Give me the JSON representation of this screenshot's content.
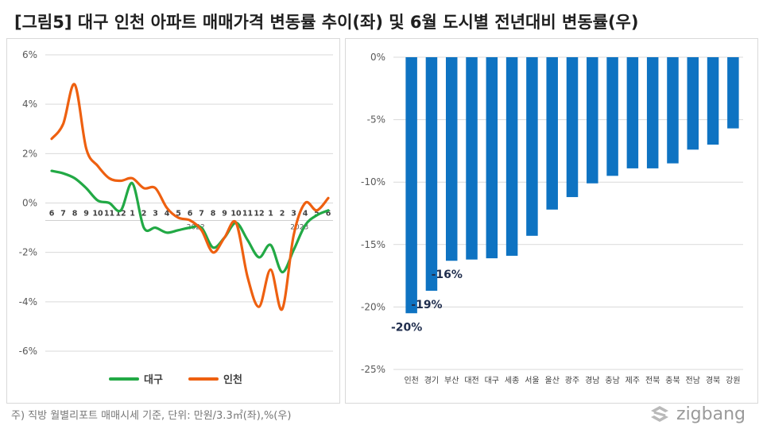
{
  "header": {
    "title": "[그림5] 대구 인천 아파트 매매가격 변동률 추이(좌) 및 6월 도시별 전년대비 변동률(우)"
  },
  "footnote": "주) 직방 월별리포트 매매시세 기준, 단위: 만원/3.3㎡(좌),%(우)",
  "brand": {
    "name": "zigbang",
    "icon": "zigbang-logo-icon"
  },
  "chart_data": [
    {
      "type": "line",
      "title": "",
      "x": [
        "6",
        "7",
        "8",
        "9",
        "10",
        "11",
        "12",
        "1",
        "2",
        "3",
        "4",
        "5",
        "6",
        "7",
        "8",
        "9",
        "10",
        "11",
        "12",
        "1",
        "2",
        "3",
        "4",
        "5",
        "6"
      ],
      "year_labels": [
        {
          "label": "2022",
          "index": 12.5
        },
        {
          "label": "2023",
          "index": 21.5
        }
      ],
      "y_ticks": [
        "6%",
        "4%",
        "2%",
        "0%",
        "-2%",
        "-4%",
        "-6%"
      ],
      "ylim": [
        -6,
        6
      ],
      "series": [
        {
          "name": "대구",
          "color": "#22a945",
          "values": [
            1.3,
            1.2,
            1.0,
            0.6,
            0.1,
            0.0,
            -0.3,
            0.8,
            -1.0,
            -1.0,
            -1.2,
            -1.1,
            -1.0,
            -1.0,
            -1.8,
            -1.4,
            -0.8,
            -1.5,
            -2.2,
            -1.7,
            -2.8,
            -1.9,
            -0.9,
            -0.5,
            -0.3
          ]
        },
        {
          "name": "인천",
          "color": "#ee6010",
          "values": [
            2.6,
            3.2,
            4.8,
            2.2,
            1.5,
            1.0,
            0.9,
            1.0,
            0.6,
            0.6,
            -0.2,
            -0.6,
            -0.7,
            -1.1,
            -2.0,
            -1.4,
            -0.8,
            -3.0,
            -4.2,
            -2.7,
            -4.3,
            -1.3,
            0.0,
            -0.3,
            0.2
          ]
        }
      ]
    },
    {
      "type": "bar",
      "title": "",
      "categories": [
        "인천",
        "경기",
        "부산",
        "대전",
        "대구",
        "세종",
        "서울",
        "울산",
        "광주",
        "경남",
        "충남",
        "제주",
        "전북",
        "충북",
        "전남",
        "경북",
        "강원"
      ],
      "values": [
        -20.5,
        -18.7,
        -16.3,
        -16.2,
        -16.1,
        -15.9,
        -14.3,
        -12.2,
        -11.2,
        -10.1,
        -9.5,
        -8.9,
        -8.9,
        -8.5,
        -7.4,
        -7.0,
        -5.7
      ],
      "data_labels": [
        {
          "index": 0,
          "text": "-20%"
        },
        {
          "index": 1,
          "text": "-19%"
        },
        {
          "index": 2,
          "text": "-16%"
        }
      ],
      "y_ticks": [
        "0%",
        "-5%",
        "-10%",
        "-15%",
        "-20%",
        "-25%"
      ],
      "ylim": [
        -25,
        0
      ],
      "color": "#0e73c2"
    }
  ]
}
